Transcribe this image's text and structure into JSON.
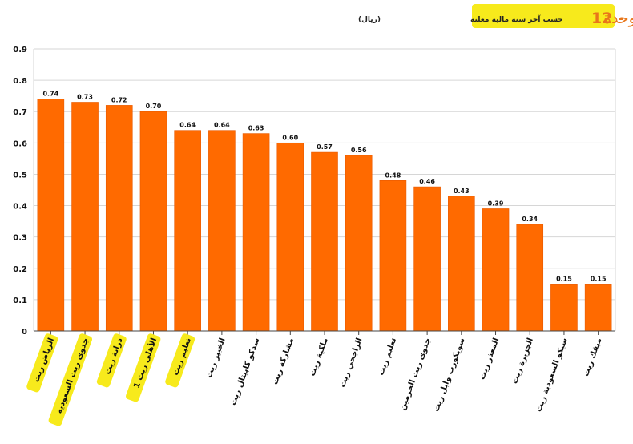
{
  "header": {
    "number": "12 -",
    "title": "التوزيع النقدي للوحدة",
    "subtitle": "حسب آخر سنة مالية معلنة",
    "unit": "(ريال)"
  },
  "colors": {
    "bar": "#ff6a00",
    "bar_edge": "#e85a00",
    "title": "#e8761a",
    "highlight": "#f7ea1c",
    "grid": "#d6d6d6",
    "text": "#111111"
  },
  "chart_data": {
    "type": "bar",
    "categories": [
      "الرياض ريت",
      "جدوى ريت السعودية",
      "دراية ريت",
      "الأهلي ريت 1",
      "تعليم ريت",
      "الخبير ريت",
      "سدكو كابيتال ريت",
      "مشاركة ريت",
      "ملكية ريت",
      "الراجحي ريت",
      "تعليم ريت",
      "جدوى ريت الحرمين",
      "سويكورب وابل ريت",
      "المعذر ريت",
      "الجزيرة ريت",
      "سيكو السعودية ريت",
      "ميفك ريت"
    ],
    "values": [
      0.74,
      0.73,
      0.72,
      0.7,
      0.64,
      0.64,
      0.63,
      0.6,
      0.57,
      0.56,
      0.48,
      0.46,
      0.43,
      0.39,
      0.34,
      0.15,
      0.15
    ],
    "value_labels": [
      "0.74",
      "0.73",
      "0.72",
      "0.70",
      "0.64",
      "0.64",
      "0.63",
      "0.60",
      "0.57",
      "0.56",
      "0.48",
      "0.46",
      "0.43",
      "0.39",
      "0.34",
      "0.15",
      "0.15"
    ],
    "highlighted": [
      true,
      true,
      true,
      true,
      true,
      false,
      false,
      false,
      false,
      false,
      false,
      false,
      false,
      false,
      false,
      false,
      false
    ],
    "y_ticks": [
      "0",
      "0.1",
      "0.2",
      "0.3",
      "0.4",
      "0.5",
      "0.6",
      "0.7",
      "0.8",
      "0.9"
    ],
    "ylim": [
      0,
      0.9
    ],
    "grid": true,
    "title": "التوزيع النقدي للوحدة",
    "xlabel": "",
    "ylabel": ""
  }
}
